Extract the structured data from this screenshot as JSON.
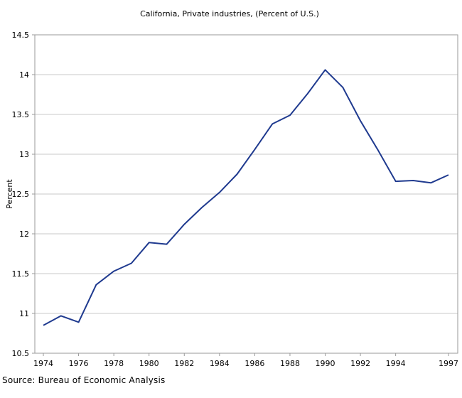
{
  "chart_data": {
    "type": "line",
    "title": "California, Private industries, (Percent of U.S.)",
    "xlabel": "",
    "ylabel": "Percent",
    "xlim": [
      1974,
      1997
    ],
    "ylim": [
      10.5,
      14.5
    ],
    "y_ticks": [
      10.5,
      11,
      11.5,
      12,
      12.5,
      13,
      13.5,
      14,
      14.5
    ],
    "y_tick_labels": [
      "10.5",
      "11",
      "11.5",
      "12",
      "12.5",
      "13",
      "13.5",
      "14",
      "14.5"
    ],
    "x_ticks": [
      1974,
      1976,
      1978,
      1980,
      1982,
      1984,
      1986,
      1988,
      1990,
      1992,
      1994,
      1997
    ],
    "x_tick_labels": [
      "1974",
      "1976",
      "1978",
      "1980",
      "1982",
      "1984",
      "1986",
      "1988",
      "1990",
      "1992",
      "1994",
      "1997"
    ],
    "grid": "horizontal",
    "line_color": "#1f3a8f",
    "series": [
      {
        "name": "",
        "x": [
          1974,
          1975,
          1976,
          1977,
          1978,
          1979,
          1980,
          1981,
          1982,
          1983,
          1984,
          1985,
          1986,
          1987,
          1988,
          1989,
          1990,
          1991,
          1992,
          1993,
          1994,
          1995,
          1996,
          1997
        ],
        "values": [
          10.85,
          10.97,
          10.89,
          11.36,
          11.53,
          11.63,
          11.89,
          11.87,
          12.12,
          12.33,
          12.52,
          12.75,
          13.06,
          13.38,
          13.49,
          13.76,
          14.06,
          13.84,
          13.42,
          13.05,
          12.66,
          12.67,
          12.64,
          12.74
        ]
      }
    ]
  },
  "source": "Source: Bureau of Economic Analysis"
}
